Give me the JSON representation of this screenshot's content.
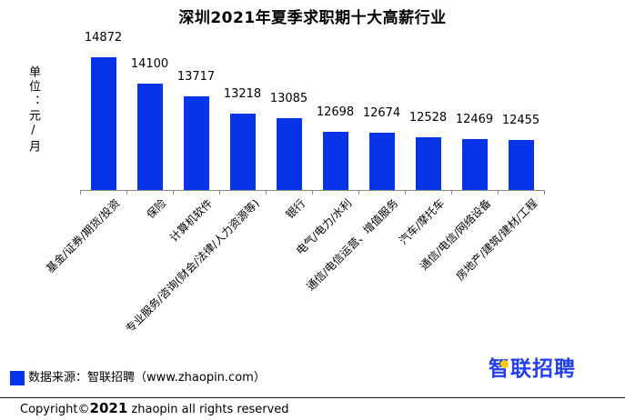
{
  "chart_data": {
    "type": "bar",
    "title": "深圳2021年夏季求职期十大高薪行业",
    "categories": [
      "基金/证券/期货/投资",
      "保险",
      "计算机软件",
      "专业服务/咨询(财会/法律/人力资源等)",
      "银行",
      "电气/电力/水利",
      "通信/电信运营、增值服务",
      "汽车/摩托车",
      "通信/电信/网络设备",
      "房地产/建筑/建材/工程"
    ],
    "values": [
      14872,
      14100,
      13717,
      13218,
      13085,
      12698,
      12674,
      12528,
      12469,
      12455
    ],
    "value_labels": [
      "14872",
      "14100",
      "13717",
      "13218",
      "13085",
      "12698",
      "12674",
      "12528",
      "12469",
      "12455"
    ],
    "xlabel": "",
    "ylabel": "单位：元/月",
    "ylim": [
      11000,
      15000
    ],
    "grid": false,
    "value_labels_shown": true,
    "bar_color": "#0734E9"
  },
  "legend": {
    "source_label": "数据来源：智联招聘（www.zhaopin.com）",
    "swatch_color": "#0734E9"
  },
  "footer": {
    "copyright_prefix": "Copyright©",
    "copyright_year": "2021",
    "copyright_suffix": " zhaopin all rights reserved",
    "logo_text": "智联招聘"
  },
  "colors": {
    "bar_blue": "#0734E9",
    "logo_blue": "#2440EE",
    "logo_yellow": "#FFC900",
    "axis_gray": "#8C8C8C"
  }
}
